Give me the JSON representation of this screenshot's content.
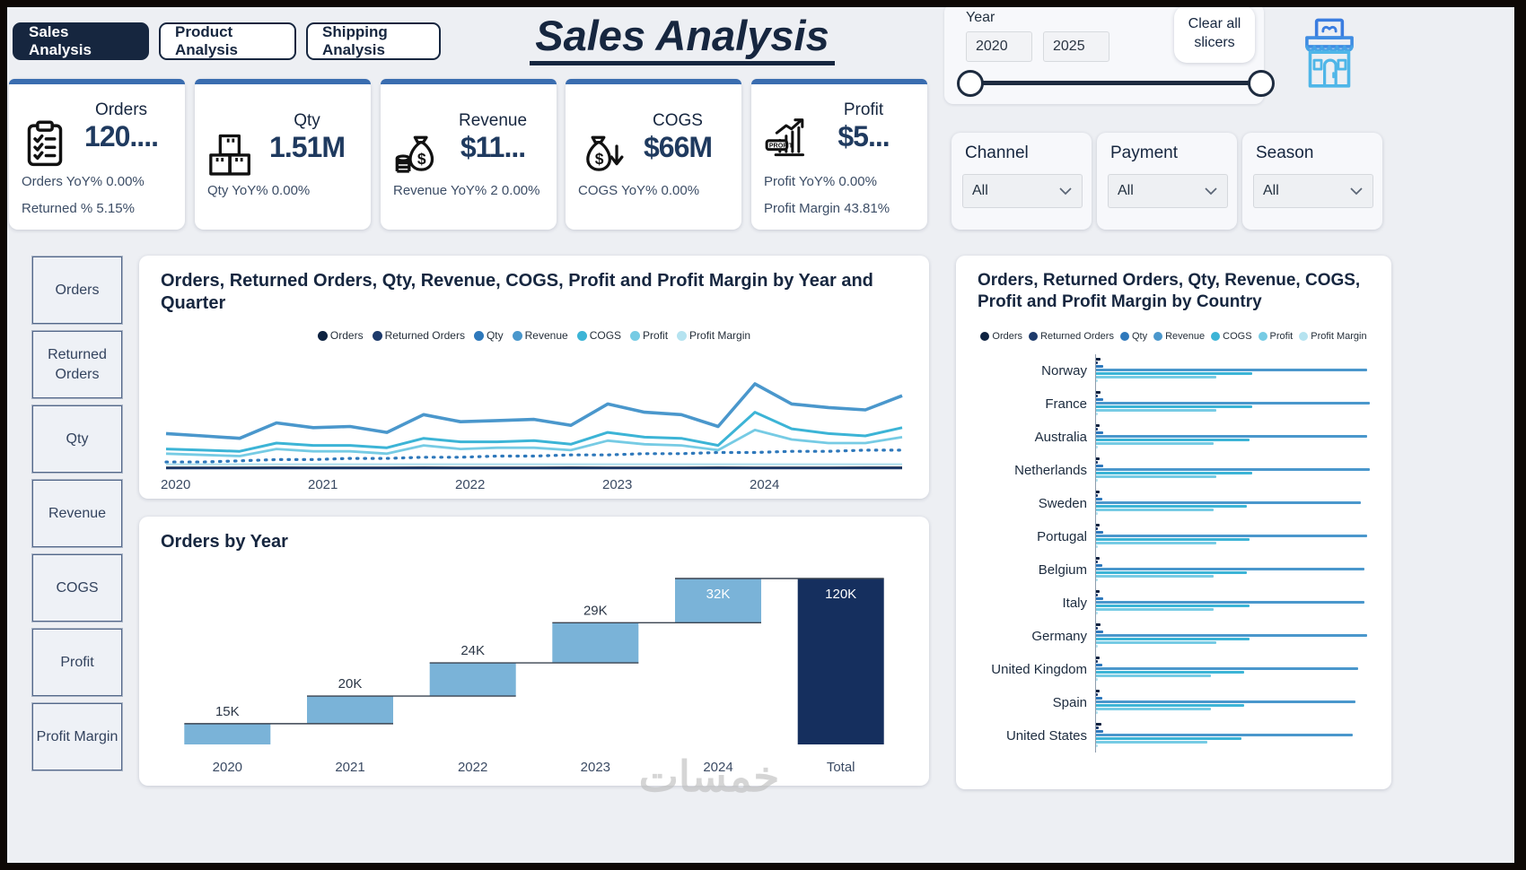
{
  "header": {
    "title": "Sales Analysis"
  },
  "nav": {
    "tabs": [
      {
        "label": "Sales Analysis",
        "active": true
      },
      {
        "label": "Product Analysis",
        "active": false
      },
      {
        "label": "Shipping Analysis",
        "active": false
      }
    ]
  },
  "year_slicer": {
    "label": "Year",
    "from": "2020",
    "to": "2025"
  },
  "clear_all_label": "Clear all slicers",
  "store_icon": "storefront-icon",
  "colors": {
    "accent_strip": "#3a6db0",
    "navy": "#16263f",
    "kpi_value": "#1f3a5f"
  },
  "kpis": [
    {
      "name": "Orders",
      "icon": "clipboard-icon",
      "value": "120....",
      "lines": [
        "Orders YoY% 0.00%",
        "Returned % 5.15%"
      ]
    },
    {
      "name": "Qty",
      "icon": "boxes-icon",
      "value": "1.51M",
      "lines": [
        "Qty YoY% 0.00%"
      ]
    },
    {
      "name": "Revenue",
      "icon": "money-bag-icon",
      "value": "$11...",
      "lines": [
        "Revenue YoY% 2 0.00%"
      ]
    },
    {
      "name": "COGS",
      "icon": "money-bag-down-icon",
      "value": "$66M",
      "lines": [
        "COGS YoY% 0.00%"
      ]
    },
    {
      "name": "Profit",
      "icon": "profit-chart-icon",
      "value": "$5...",
      "lines": [
        "Profit YoY% 0.00%",
        "Profit Margin 43.81%"
      ]
    }
  ],
  "slicers": [
    {
      "label": "Channel",
      "value": "All"
    },
    {
      "label": "Payment",
      "value": "All"
    },
    {
      "label": "Season",
      "value": "All"
    }
  ],
  "sidebar": {
    "items": [
      "Orders",
      "Returned Orders",
      "Qty",
      "Revenue",
      "COGS",
      "Profit",
      "Profit Margin"
    ]
  },
  "watermark": "خمسات",
  "chart_data": [
    {
      "type": "line",
      "title": "Orders, Returned Orders, Qty, Revenue, COGS, Profit and Profit Margin by Year and Quarter",
      "x_tick_labels": [
        "2020",
        "2021",
        "2022",
        "2023",
        "2024"
      ],
      "x_description": "Quarterly points 2020 Q1 through 2025 Q1",
      "ylim": [
        0,
        100
      ],
      "grid": false,
      "legend_position": "top",
      "series": [
        {
          "name": "Orders",
          "color": "#0d2240",
          "width": 2.4,
          "dash": false,
          "values": [
            1.2,
            1.2,
            1.2,
            1.3,
            1.2,
            1.2,
            1.2,
            1.3,
            1.2,
            1.2,
            1.2,
            1.3,
            1.2,
            1.2,
            1.2,
            1.3,
            1.2,
            1.2,
            1.2,
            1.3,
            1.3
          ]
        },
        {
          "name": "Returned Orders",
          "color": "#1d3a6b",
          "width": 2.2,
          "dash": false,
          "values": [
            0.6,
            0.6,
            0.6,
            0.7,
            0.6,
            0.6,
            0.6,
            0.7,
            0.6,
            0.6,
            0.6,
            0.7,
            0.6,
            0.6,
            0.6,
            0.7,
            0.6,
            0.6,
            0.6,
            0.7,
            0.7
          ]
        },
        {
          "name": "Qty",
          "color": "#2e78bb",
          "width": 3.2,
          "dash": true,
          "values": [
            6,
            6,
            7,
            8,
            8,
            9,
            9,
            10,
            10,
            11,
            11,
            12,
            12,
            13,
            13,
            14,
            14,
            15,
            15,
            16,
            16
          ]
        },
        {
          "name": "Revenue",
          "color": "#4a97cc",
          "width": 3.6,
          "dash": false,
          "values": [
            30,
            28,
            26,
            39,
            35,
            36,
            31,
            46,
            40,
            41,
            42,
            37,
            55,
            48,
            46,
            36,
            72,
            55,
            52,
            50,
            62
          ]
        },
        {
          "name": "COGS",
          "color": "#3cb4d6",
          "width": 3.0,
          "dash": false,
          "values": [
            17,
            16,
            15,
            22,
            20,
            20,
            18,
            26,
            23,
            23,
            24,
            21,
            31,
            27,
            26,
            20,
            48,
            34,
            30,
            28,
            35
          ]
        },
        {
          "name": "Profit",
          "color": "#76cbe4",
          "width": 2.8,
          "dash": false,
          "values": [
            13,
            12,
            11,
            17,
            15,
            15,
            13,
            20,
            17,
            18,
            18,
            16,
            24,
            21,
            20,
            16,
            33,
            25,
            22,
            22,
            27
          ]
        },
        {
          "name": "Profit Margin",
          "color": "#b5e3f0",
          "width": 2.4,
          "dash": false,
          "values": [
            4,
            4,
            4,
            4,
            4,
            4,
            4,
            4,
            4,
            4,
            4,
            4,
            4,
            4,
            4,
            4,
            4,
            4,
            4,
            4,
            4
          ]
        }
      ]
    },
    {
      "type": "waterfall",
      "title": "Orders by Year",
      "categories": [
        "2020",
        "2021",
        "2022",
        "2023",
        "2024",
        "Total"
      ],
      "values": [
        15,
        20,
        24,
        29,
        32,
        120
      ],
      "labels": [
        "15K",
        "20K",
        "24K",
        "29K",
        "32K",
        "120K"
      ],
      "label_inside": [
        false,
        false,
        false,
        false,
        true,
        true
      ],
      "increase_color": "#7ab3d8",
      "total_color": "#152f5e",
      "connector_color": "#3a4350",
      "ylim_k": [
        0,
        120
      ]
    },
    {
      "type": "bar-grouped-horizontal",
      "title": "Orders, Returned Orders, Qty, Revenue, COGS, Profit and Profit Margin by Country",
      "categories": [
        "Norway",
        "France",
        "Australia",
        "Netherlands",
        "Sweden",
        "Portugal",
        "Belgium",
        "Italy",
        "Germany",
        "United Kingdom",
        "Spain",
        "United States"
      ],
      "value_unit": "relative length, % of axis",
      "legend_position": "top",
      "series": [
        {
          "name": "Orders",
          "color": "#0d2240",
          "values": [
            1.5,
            1.5,
            1.4,
            1.4,
            1.4,
            1.3,
            1.3,
            1.3,
            1.6,
            1.4,
            1.3,
            1.8
          ]
        },
        {
          "name": "Returned Orders",
          "color": "#1d3a6b",
          "values": [
            0.8,
            0.8,
            0.8,
            0.8,
            0.8,
            0.7,
            0.7,
            0.7,
            0.8,
            0.8,
            0.7,
            0.9
          ]
        },
        {
          "name": "Qty",
          "color": "#2e78bb",
          "values": [
            2.6,
            2.6,
            2.5,
            2.6,
            2.4,
            2.5,
            2.4,
            2.5,
            2.6,
            2.4,
            2.3,
            2.7
          ]
        },
        {
          "name": "Revenue",
          "color": "#4a97cc",
          "values": [
            97,
            98,
            97,
            98,
            95,
            97,
            96,
            96,
            97,
            94,
            93,
            92
          ]
        },
        {
          "name": "COGS",
          "color": "#3cb4d6",
          "values": [
            56,
            56,
            55,
            56,
            54,
            55,
            54,
            55,
            55,
            53,
            53,
            52
          ]
        },
        {
          "name": "Profit",
          "color": "#76cbe4",
          "values": [
            43,
            43,
            42,
            43,
            42,
            43,
            42,
            42,
            43,
            41,
            41,
            40
          ]
        },
        {
          "name": "Profit Margin",
          "color": "#b5e3f0",
          "values": [
            0.5,
            0.5,
            0.5,
            0.5,
            0.5,
            0.5,
            0.5,
            0.5,
            0.5,
            0.5,
            0.5,
            0.5
          ]
        }
      ]
    }
  ]
}
